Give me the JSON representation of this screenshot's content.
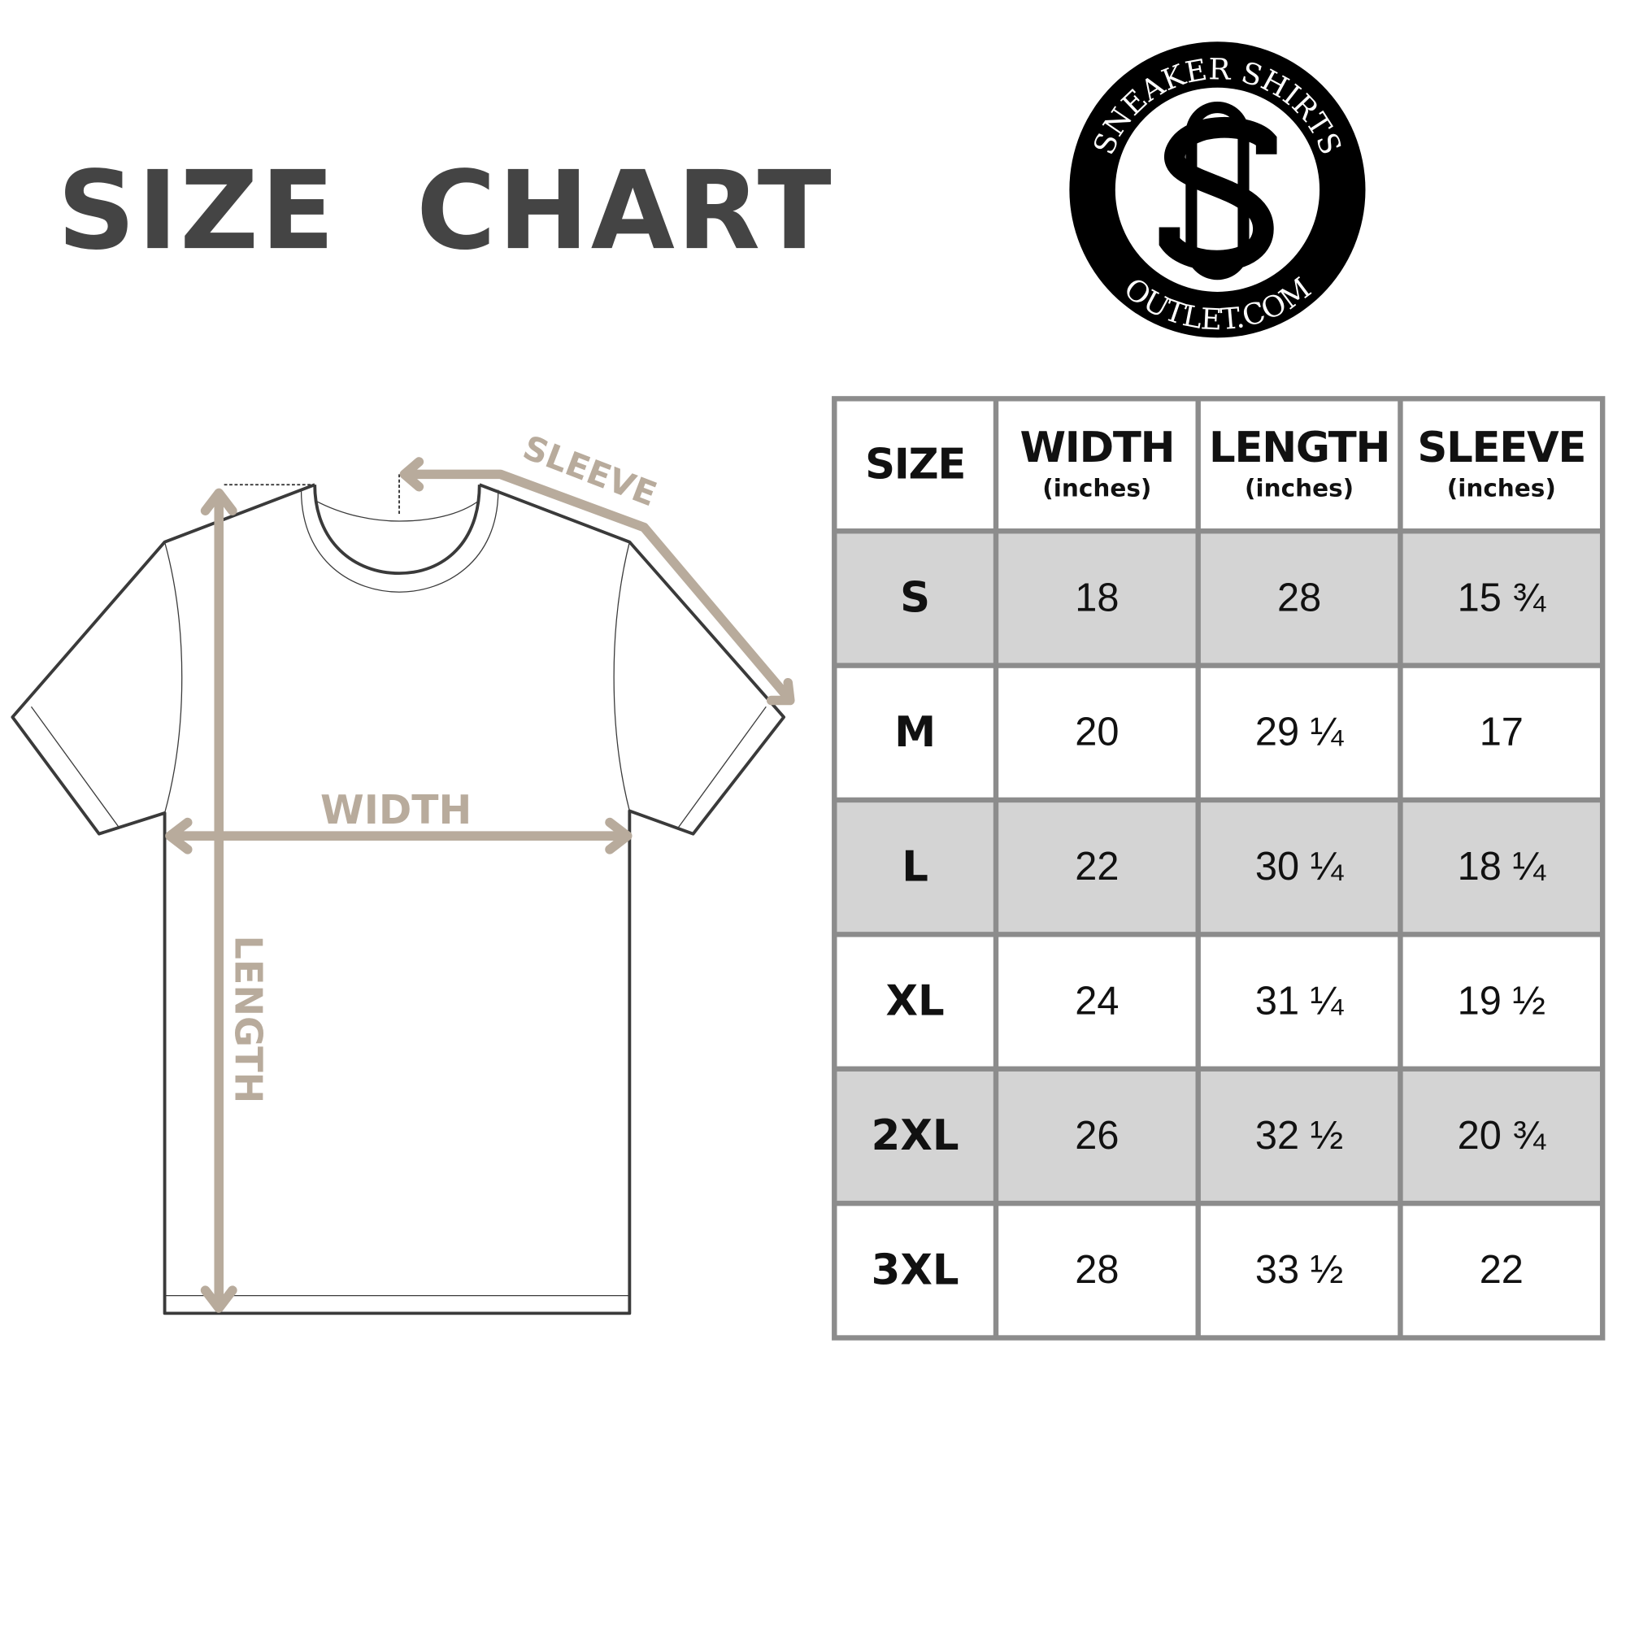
{
  "title": "SIZE  CHART",
  "logo": {
    "top_text": "SNEAKER SHIRTS",
    "bottom_text": "OUTLET.COM",
    "monogram": "SO"
  },
  "diagram": {
    "labels": {
      "sleeve": "SLEEVE",
      "width": "WIDTH",
      "length": "LENGTH"
    },
    "arrow_color": "#b8ab9c",
    "outline_color": "#3a3a3a"
  },
  "table": {
    "headers": [
      {
        "label": "SIZE",
        "unit": ""
      },
      {
        "label": "WIDTH",
        "unit": "(inches)"
      },
      {
        "label": "LENGTH",
        "unit": "(inches)"
      },
      {
        "label": "SLEEVE",
        "unit": "(inches)"
      }
    ],
    "rows": [
      [
        "S",
        "18",
        "28",
        "15 ¾"
      ],
      [
        "M",
        "20",
        "29 ¼",
        "17"
      ],
      [
        "L",
        "22",
        "30 ¼",
        "18 ¼"
      ],
      [
        "XL",
        "24",
        "31 ¼",
        "19 ½"
      ],
      [
        "2XL",
        "26",
        "32 ½",
        "20 ¾"
      ],
      [
        "3XL",
        "28",
        "33 ½",
        "22"
      ]
    ],
    "shade_color": "#d4d4d4",
    "border_color": "#8c8c8c"
  }
}
